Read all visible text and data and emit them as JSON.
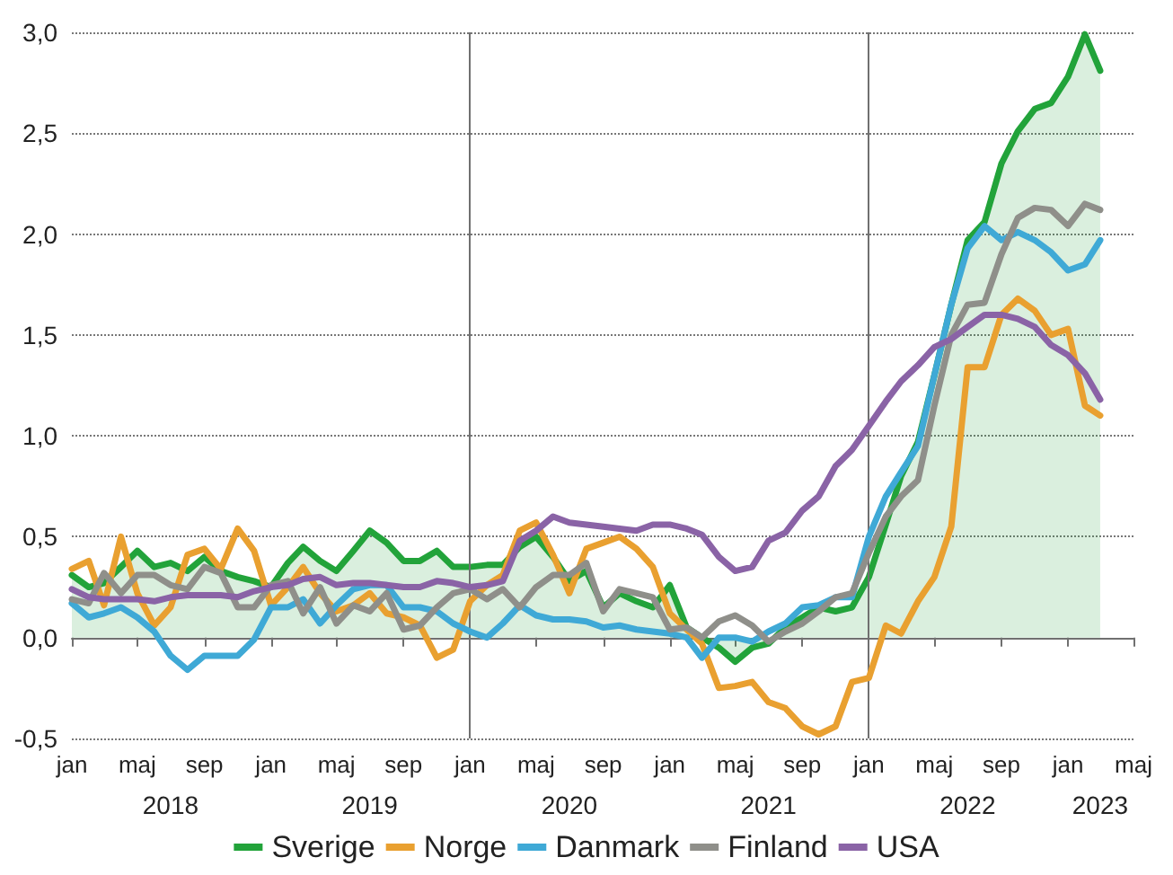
{
  "chart_data": {
    "type": "line",
    "x": [
      "2018-01",
      "2018-02",
      "2018-03",
      "2018-04",
      "2018-05",
      "2018-06",
      "2018-07",
      "2018-08",
      "2018-09",
      "2018-10",
      "2018-11",
      "2018-12",
      "2019-01",
      "2019-02",
      "2019-03",
      "2019-04",
      "2019-05",
      "2019-06",
      "2019-07",
      "2019-08",
      "2019-09",
      "2019-10",
      "2019-11",
      "2019-12",
      "2020-01",
      "2020-02",
      "2020-03",
      "2020-04",
      "2020-05",
      "2020-06",
      "2020-07",
      "2020-08",
      "2020-09",
      "2020-10",
      "2020-11",
      "2020-12",
      "2021-01",
      "2021-02",
      "2021-03",
      "2021-04",
      "2021-05",
      "2021-06",
      "2021-07",
      "2021-08",
      "2021-09",
      "2021-10",
      "2021-11",
      "2021-12",
      "2022-01",
      "2022-02",
      "2022-03",
      "2022-04",
      "2022-05",
      "2022-06",
      "2022-07",
      "2022-08",
      "2022-09",
      "2022-10",
      "2022-11",
      "2022-12",
      "2023-01",
      "2023-02",
      "2023-03"
    ],
    "series": [
      {
        "name": "Sverige",
        "type": "area",
        "color": "#22a33a",
        "values": [
          0.31,
          0.25,
          0.27,
          0.35,
          0.43,
          0.35,
          0.37,
          0.33,
          0.4,
          0.33,
          0.3,
          0.28,
          0.25,
          0.37,
          0.45,
          0.38,
          0.33,
          0.43,
          0.53,
          0.47,
          0.38,
          0.38,
          0.43,
          0.35,
          0.35,
          0.36,
          0.36,
          0.45,
          0.5,
          0.4,
          0.28,
          0.33,
          0.15,
          0.22,
          0.18,
          0.15,
          0.26,
          0.05,
          0.0,
          -0.05,
          -0.12,
          -0.05,
          -0.03,
          0.05,
          0.1,
          0.15,
          0.13,
          0.15,
          0.3,
          0.56,
          0.8,
          0.97,
          1.3,
          1.65,
          1.97,
          2.06,
          2.35,
          2.51,
          2.62,
          2.65,
          2.78,
          2.99,
          2.81
        ]
      },
      {
        "name": "Norge",
        "color": "#e9a030",
        "values": [
          0.34,
          0.38,
          0.16,
          0.5,
          0.22,
          0.06,
          0.15,
          0.41,
          0.44,
          0.34,
          0.54,
          0.43,
          0.16,
          0.25,
          0.35,
          0.22,
          0.13,
          0.16,
          0.22,
          0.12,
          0.1,
          0.06,
          -0.1,
          -0.06,
          0.18,
          0.26,
          0.31,
          0.53,
          0.57,
          0.41,
          0.22,
          0.44,
          0.47,
          0.5,
          0.44,
          0.35,
          0.12,
          0.04,
          -0.03,
          -0.25,
          -0.24,
          -0.22,
          -0.32,
          -0.35,
          -0.44,
          -0.48,
          -0.44,
          -0.22,
          -0.2,
          0.06,
          0.02,
          0.18,
          0.3,
          0.55,
          1.34,
          1.34,
          1.6,
          1.68,
          1.62,
          1.5,
          1.53,
          1.15,
          1.1
        ]
      },
      {
        "name": "Danmark",
        "color": "#3fa9d6",
        "values": [
          0.17,
          0.1,
          0.12,
          0.15,
          0.1,
          0.03,
          -0.09,
          -0.16,
          -0.09,
          -0.09,
          -0.09,
          -0.01,
          0.15,
          0.15,
          0.19,
          0.07,
          0.16,
          0.24,
          0.26,
          0.26,
          0.15,
          0.15,
          0.13,
          0.07,
          0.03,
          0.0,
          0.07,
          0.16,
          0.11,
          0.09,
          0.09,
          0.08,
          0.05,
          0.06,
          0.04,
          0.03,
          0.02,
          0.0,
          -0.1,
          0.0,
          0.0,
          -0.02,
          0.03,
          0.07,
          0.15,
          0.16,
          0.2,
          0.2,
          0.5,
          0.7,
          0.82,
          0.95,
          1.3,
          1.65,
          1.93,
          2.04,
          1.97,
          2.01,
          1.97,
          1.91,
          1.82,
          1.85,
          1.97
        ]
      },
      {
        "name": "Finland",
        "color": "#8f8f8a",
        "values": [
          0.19,
          0.17,
          0.32,
          0.22,
          0.31,
          0.31,
          0.26,
          0.24,
          0.35,
          0.32,
          0.15,
          0.15,
          0.26,
          0.28,
          0.12,
          0.25,
          0.07,
          0.16,
          0.13,
          0.22,
          0.04,
          0.06,
          0.15,
          0.22,
          0.24,
          0.19,
          0.24,
          0.15,
          0.25,
          0.31,
          0.31,
          0.37,
          0.13,
          0.24,
          0.22,
          0.2,
          0.04,
          0.05,
          0.0,
          0.08,
          0.11,
          0.06,
          -0.02,
          0.03,
          0.07,
          0.13,
          0.2,
          0.22,
          0.42,
          0.6,
          0.7,
          0.78,
          1.15,
          1.5,
          1.65,
          1.66,
          1.9,
          2.08,
          2.13,
          2.12,
          2.04,
          2.15,
          2.12
        ]
      },
      {
        "name": "USA",
        "color": "#8a63a6",
        "values": [
          0.24,
          0.2,
          0.19,
          0.19,
          0.19,
          0.18,
          0.2,
          0.21,
          0.21,
          0.21,
          0.2,
          0.23,
          0.25,
          0.26,
          0.29,
          0.3,
          0.26,
          0.27,
          0.27,
          0.26,
          0.25,
          0.25,
          0.28,
          0.27,
          0.25,
          0.26,
          0.28,
          0.48,
          0.53,
          0.6,
          0.57,
          0.56,
          0.55,
          0.54,
          0.53,
          0.56,
          0.56,
          0.54,
          0.51,
          0.4,
          0.33,
          0.35,
          0.48,
          0.52,
          0.63,
          0.7,
          0.85,
          0.93,
          1.05,
          1.17,
          1.27,
          1.35,
          1.44,
          1.48,
          1.54,
          1.6,
          1.6,
          1.58,
          1.54,
          1.45,
          1.4,
          1.31,
          1.18
        ]
      }
    ],
    "xlim": [
      "2018-01",
      "2023-05"
    ],
    "xticks": [
      {
        "value": "2018-01",
        "label": "jan"
      },
      {
        "value": "2018-05",
        "label": "maj"
      },
      {
        "value": "2018-09",
        "label": "sep"
      },
      {
        "value": "2019-01",
        "label": "jan"
      },
      {
        "value": "2019-05",
        "label": "maj"
      },
      {
        "value": "2019-09",
        "label": "sep"
      },
      {
        "value": "2020-01",
        "label": "jan"
      },
      {
        "value": "2020-05",
        "label": "maj"
      },
      {
        "value": "2020-09",
        "label": "sep"
      },
      {
        "value": "2021-01",
        "label": "jan"
      },
      {
        "value": "2021-05",
        "label": "maj"
      },
      {
        "value": "2021-09",
        "label": "sep"
      },
      {
        "value": "2022-01",
        "label": "jan"
      },
      {
        "value": "2022-05",
        "label": "maj"
      },
      {
        "value": "2022-09",
        "label": "sep"
      },
      {
        "value": "2023-01",
        "label": "jan"
      },
      {
        "value": "2023-05",
        "label": "maj"
      }
    ],
    "x2lim": [
      "2018-01",
      "2023-05"
    ],
    "x2ticks": [
      {
        "value": "2018-07",
        "label": "2018"
      },
      {
        "value": "2019-07",
        "label": "2019"
      },
      {
        "value": "2020-07",
        "label": "2020"
      },
      {
        "value": "2021-07",
        "label": "2021"
      },
      {
        "value": "2022-07",
        "label": "2022"
      },
      {
        "value": "2023-03",
        "label": "2023"
      }
    ],
    "ylim": [
      -0.5,
      3.0
    ],
    "yticks": [
      {
        "value": -0.5,
        "label": "-0,5"
      },
      {
        "value": 0,
        "label": "0,0"
      },
      {
        "value": 0.5,
        "label": "0,5"
      },
      {
        "value": 1,
        "label": "1,0"
      },
      {
        "value": 1.5,
        "label": "1,5"
      },
      {
        "value": 2,
        "label": "2,0"
      },
      {
        "value": 2.5,
        "label": "2,5"
      },
      {
        "value": 3,
        "label": "3,0"
      }
    ],
    "ref_lines": [
      {
        "axis": "x",
        "value": "2020-01",
        "color": "#707070"
      },
      {
        "axis": "x",
        "value": "2022-01",
        "color": "#707070"
      }
    ],
    "grid": "y",
    "legend": "bottom",
    "line_style": "solid",
    "marker": "none"
  }
}
